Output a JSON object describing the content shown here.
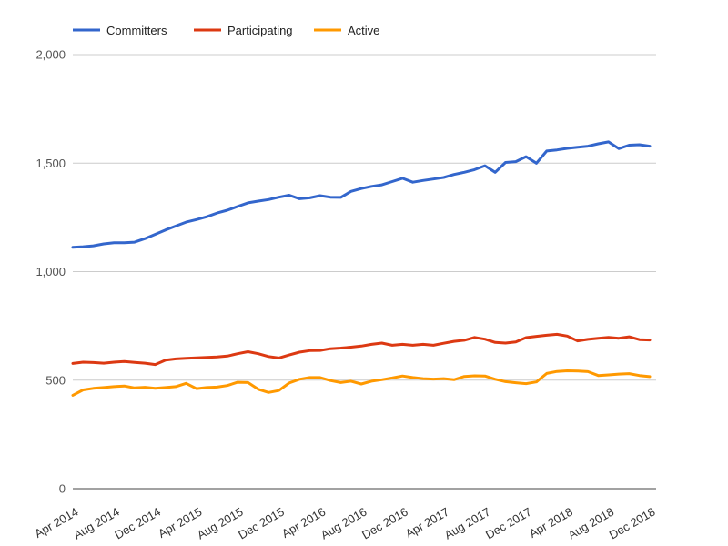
{
  "chart_data": {
    "type": "line",
    "title": "",
    "xlabel": "",
    "ylabel": "",
    "ylim": [
      0,
      2000
    ],
    "grid": true,
    "legend_position": "top",
    "x_tick_every": 4,
    "x": [
      "Apr 2014",
      "May 2014",
      "Jun 2014",
      "Jul 2014",
      "Aug 2014",
      "Sep 2014",
      "Oct 2014",
      "Nov 2014",
      "Dec 2014",
      "Jan 2015",
      "Feb 2015",
      "Mar 2015",
      "Apr 2015",
      "May 2015",
      "Jun 2015",
      "Jul 2015",
      "Aug 2015",
      "Sep 2015",
      "Oct 2015",
      "Nov 2015",
      "Dec 2015",
      "Jan 2016",
      "Feb 2016",
      "Mar 2016",
      "Apr 2016",
      "May 2016",
      "Jun 2016",
      "Jul 2016",
      "Aug 2016",
      "Sep 2016",
      "Oct 2016",
      "Nov 2016",
      "Dec 2016",
      "Jan 2017",
      "Feb 2017",
      "Mar 2017",
      "Apr 2017",
      "May 2017",
      "Jun 2017",
      "Jul 2017",
      "Aug 2017",
      "Sep 2017",
      "Oct 2017",
      "Nov 2017",
      "Dec 2017",
      "Jan 2018",
      "Feb 2018",
      "Mar 2018",
      "Apr 2018",
      "May 2018",
      "Jun 2018",
      "Jul 2018",
      "Aug 2018",
      "Sep 2018",
      "Oct 2018",
      "Nov 2018",
      "Dec 2018"
    ],
    "y_ticks": [
      {
        "value": 0,
        "label": "0"
      },
      {
        "value": 500,
        "label": "500"
      },
      {
        "value": 1000,
        "label": "1,000"
      },
      {
        "value": 1500,
        "label": "1,500"
      },
      {
        "value": 2000,
        "label": "2,000"
      }
    ],
    "series": [
      {
        "name": "Committers",
        "color": "#3366CC",
        "values": [
          1112,
          1115,
          1119,
          1128,
          1133,
          1133,
          1136,
          1152,
          1172,
          1192,
          1210,
          1228,
          1240,
          1253,
          1270,
          1283,
          1300,
          1317,
          1325,
          1332,
          1343,
          1352,
          1336,
          1340,
          1350,
          1343,
          1342,
          1370,
          1383,
          1393,
          1400,
          1415,
          1430,
          1412,
          1420,
          1427,
          1434,
          1448,
          1458,
          1470,
          1488,
          1458,
          1503,
          1507,
          1530,
          1500,
          1556,
          1561,
          1568,
          1573,
          1578,
          1589,
          1598,
          1567,
          1583,
          1585,
          1578
        ]
      },
      {
        "name": "Participating",
        "color": "#DC3912",
        "values": [
          577,
          583,
          581,
          578,
          583,
          586,
          582,
          578,
          572,
          592,
          598,
          601,
          603,
          605,
          607,
          611,
          622,
          631,
          622,
          609,
          602,
          616,
          629,
          636,
          637,
          645,
          648,
          652,
          657,
          665,
          671,
          661,
          665,
          661,
          665,
          661,
          670,
          679,
          684,
          697,
          689,
          674,
          671,
          676,
          696,
          702,
          707,
          711,
          703,
          681,
          688,
          693,
          697,
          693,
          700,
          687,
          685
        ]
      },
      {
        "name": "Active",
        "color": "#FF9900",
        "values": [
          430,
          455,
          462,
          466,
          470,
          473,
          464,
          467,
          462,
          466,
          470,
          485,
          461,
          466,
          468,
          475,
          490,
          489,
          458,
          443,
          452,
          487,
          504,
          512,
          512,
          498,
          489,
          495,
          482,
          495,
          502,
          510,
          519,
          512,
          507,
          505,
          507,
          502,
          517,
          520,
          519,
          504,
          493,
          488,
          484,
          492,
          531,
          540,
          543,
          542,
          539,
          521,
          524,
          528,
          530,
          521,
          516
        ]
      }
    ],
    "colors": {
      "background": "#ffffff",
      "gridline": "#cccccc",
      "baseline": "#444444",
      "y_axis_text": "#555555",
      "x_axis_text": "#333333",
      "legend_text": "#222222"
    }
  }
}
